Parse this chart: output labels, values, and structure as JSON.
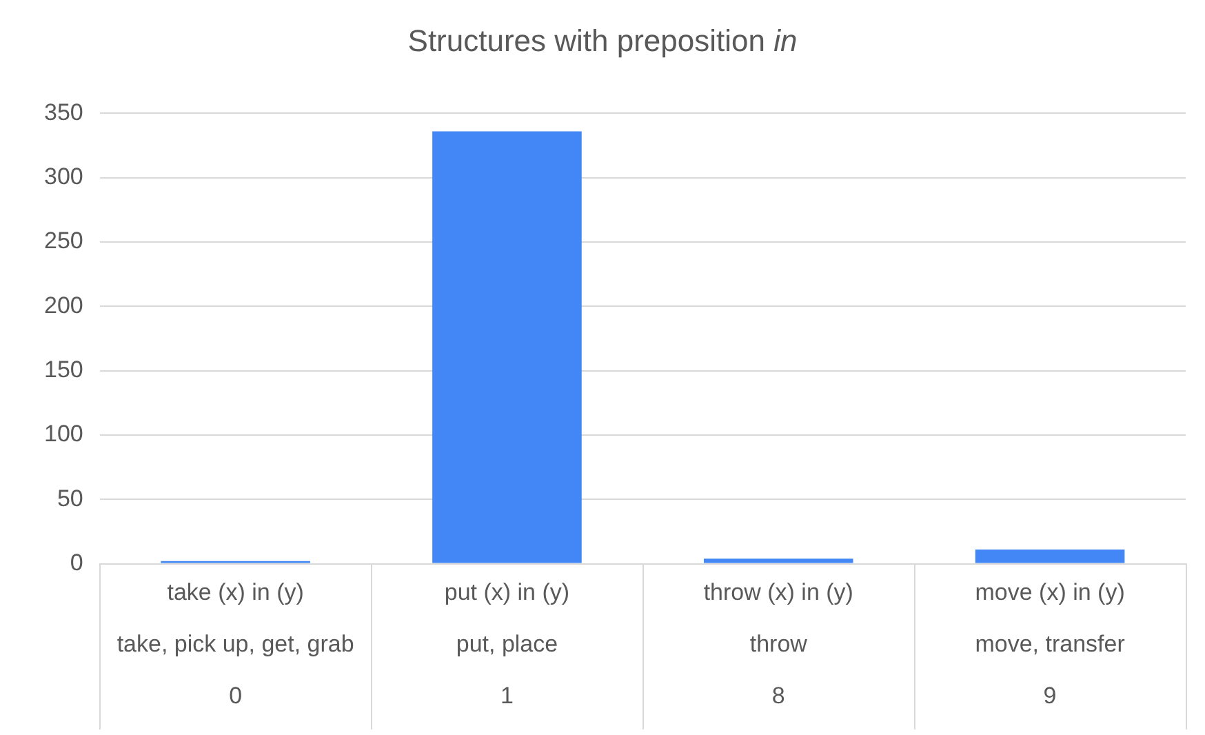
{
  "chart_data": {
    "type": "bar",
    "title": "Structures with preposition in",
    "categories": [
      "take (x) in (y)\ntake, pick up, get, grab\n0",
      "put (x) in (y)\nput, place\n1",
      "throw (x) in (y)\nthrow\n8",
      "move (x) in (y)\nmove, transfer\n9"
    ],
    "values": [
      2,
      336,
      4,
      11
    ],
    "color": "#4287f5",
    "ylim": [
      0,
      350
    ],
    "yticks": [
      0,
      50,
      100,
      150,
      200,
      250,
      300,
      350
    ],
    "grid": "y",
    "legend": false
  }
}
